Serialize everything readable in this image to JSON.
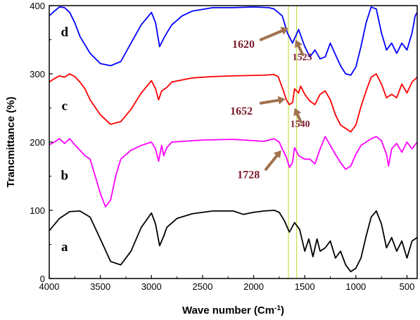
{
  "chart_data": {
    "type": "line",
    "xlabel": "Wave number (Cm",
    "xlabel_sup": "-1",
    "xlabel_close": ")",
    "ylabel": "Trancmittance (%)",
    "xlim": [
      4000,
      400
    ],
    "ylim": [
      0,
      400
    ],
    "x_ticks": [
      4000,
      3500,
      3000,
      2500,
      2000,
      1500,
      1000,
      500
    ],
    "y_ticks": [
      0,
      100,
      200,
      300,
      400
    ],
    "grid": false,
    "series": [
      {
        "label": "a",
        "label_x": 3850,
        "label_y": 40,
        "color": "#000000",
        "points": [
          [
            4000,
            70
          ],
          [
            3900,
            88
          ],
          [
            3800,
            98
          ],
          [
            3700,
            99
          ],
          [
            3600,
            90
          ],
          [
            3500,
            58
          ],
          [
            3400,
            25
          ],
          [
            3300,
            20
          ],
          [
            3200,
            40
          ],
          [
            3100,
            75
          ],
          [
            3000,
            96
          ],
          [
            2960,
            80
          ],
          [
            2920,
            48
          ],
          [
            2880,
            62
          ],
          [
            2850,
            75
          ],
          [
            2750,
            88
          ],
          [
            2600,
            95
          ],
          [
            2400,
            99
          ],
          [
            2200,
            99
          ],
          [
            2100,
            94
          ],
          [
            2000,
            97
          ],
          [
            1900,
            99
          ],
          [
            1800,
            100
          ],
          [
            1750,
            97
          ],
          [
            1700,
            85
          ],
          [
            1650,
            68
          ],
          [
            1600,
            82
          ],
          [
            1550,
            72
          ],
          [
            1500,
            40
          ],
          [
            1460,
            58
          ],
          [
            1420,
            32
          ],
          [
            1380,
            58
          ],
          [
            1350,
            40
          ],
          [
            1300,
            45
          ],
          [
            1250,
            55
          ],
          [
            1200,
            30
          ],
          [
            1150,
            40
          ],
          [
            1100,
            20
          ],
          [
            1050,
            10
          ],
          [
            1000,
            15
          ],
          [
            950,
            30
          ],
          [
            900,
            62
          ],
          [
            850,
            90
          ],
          [
            800,
            99
          ],
          [
            750,
            80
          ],
          [
            700,
            45
          ],
          [
            650,
            60
          ],
          [
            600,
            40
          ],
          [
            550,
            55
          ],
          [
            500,
            30
          ],
          [
            450,
            55
          ],
          [
            400,
            60
          ]
        ]
      },
      {
        "label": "b",
        "label_x": 3850,
        "label_y": 145,
        "color": "#ff00ff",
        "points": [
          [
            4000,
            196
          ],
          [
            3950,
            200
          ],
          [
            3900,
            205
          ],
          [
            3850,
            198
          ],
          [
            3800,
            205
          ],
          [
            3750,
            196
          ],
          [
            3700,
            188
          ],
          [
            3650,
            180
          ],
          [
            3600,
            175
          ],
          [
            3550,
            150
          ],
          [
            3500,
            125
          ],
          [
            3450,
            105
          ],
          [
            3400,
            115
          ],
          [
            3350,
            150
          ],
          [
            3300,
            175
          ],
          [
            3200,
            188
          ],
          [
            3100,
            195
          ],
          [
            3000,
            200
          ],
          [
            2960,
            190
          ],
          [
            2930,
            172
          ],
          [
            2900,
            195
          ],
          [
            2880,
            180
          ],
          [
            2850,
            192
          ],
          [
            2800,
            200
          ],
          [
            2500,
            203
          ],
          [
            2200,
            204
          ],
          [
            1900,
            201
          ],
          [
            1800,
            205
          ],
          [
            1750,
            200
          ],
          [
            1720,
            190
          ],
          [
            1680,
            178
          ],
          [
            1650,
            163
          ],
          [
            1620,
            170
          ],
          [
            1600,
            192
          ],
          [
            1560,
            180
          ],
          [
            1500,
            175
          ],
          [
            1450,
            175
          ],
          [
            1400,
            168
          ],
          [
            1350,
            190
          ],
          [
            1300,
            208
          ],
          [
            1250,
            195
          ],
          [
            1200,
            182
          ],
          [
            1150,
            170
          ],
          [
            1100,
            160
          ],
          [
            1050,
            165
          ],
          [
            1000,
            182
          ],
          [
            950,
            195
          ],
          [
            900,
            200
          ],
          [
            850,
            205
          ],
          [
            800,
            208
          ],
          [
            750,
            202
          ],
          [
            700,
            182
          ],
          [
            680,
            165
          ],
          [
            650,
            190
          ],
          [
            600,
            198
          ],
          [
            550,
            185
          ],
          [
            500,
            200
          ],
          [
            450,
            190
          ],
          [
            400,
            200
          ]
        ]
      },
      {
        "label": "c",
        "label_x": 3850,
        "label_y": 247,
        "color": "#ff0000",
        "points": [
          [
            4000,
            288
          ],
          [
            3950,
            293
          ],
          [
            3900,
            297
          ],
          [
            3850,
            295
          ],
          [
            3800,
            300
          ],
          [
            3750,
            296
          ],
          [
            3700,
            288
          ],
          [
            3650,
            278
          ],
          [
            3600,
            262
          ],
          [
            3500,
            240
          ],
          [
            3400,
            226
          ],
          [
            3300,
            230
          ],
          [
            3200,
            248
          ],
          [
            3100,
            272
          ],
          [
            3000,
            290
          ],
          [
            2960,
            278
          ],
          [
            2930,
            262
          ],
          [
            2900,
            275
          ],
          [
            2850,
            280
          ],
          [
            2800,
            288
          ],
          [
            2600,
            294
          ],
          [
            2400,
            296
          ],
          [
            2200,
            297
          ],
          [
            1900,
            298
          ],
          [
            1800,
            299
          ],
          [
            1760,
            296
          ],
          [
            1720,
            280
          ],
          [
            1680,
            262
          ],
          [
            1650,
            255
          ],
          [
            1620,
            258
          ],
          [
            1600,
            278
          ],
          [
            1560,
            272
          ],
          [
            1540,
            282
          ],
          [
            1500,
            270
          ],
          [
            1450,
            260
          ],
          [
            1400,
            255
          ],
          [
            1350,
            270
          ],
          [
            1300,
            275
          ],
          [
            1250,
            262
          ],
          [
            1200,
            240
          ],
          [
            1150,
            225
          ],
          [
            1100,
            220
          ],
          [
            1050,
            215
          ],
          [
            1000,
            225
          ],
          [
            950,
            252
          ],
          [
            900,
            275
          ],
          [
            850,
            295
          ],
          [
            800,
            300
          ],
          [
            750,
            285
          ],
          [
            700,
            265
          ],
          [
            650,
            270
          ],
          [
            600,
            265
          ],
          [
            550,
            285
          ],
          [
            500,
            272
          ],
          [
            450,
            288
          ],
          [
            400,
            295
          ]
        ]
      },
      {
        "label": "d",
        "label_x": 3850,
        "label_y": 355,
        "color": "#0000ff",
        "points": [
          [
            4000,
            385
          ],
          [
            3950,
            392
          ],
          [
            3900,
            398
          ],
          [
            3850,
            397
          ],
          [
            3800,
            390
          ],
          [
            3750,
            375
          ],
          [
            3700,
            355
          ],
          [
            3600,
            330
          ],
          [
            3500,
            315
          ],
          [
            3400,
            312
          ],
          [
            3300,
            318
          ],
          [
            3200,
            345
          ],
          [
            3100,
            372
          ],
          [
            3000,
            390
          ],
          [
            2960,
            375
          ],
          [
            2920,
            340
          ],
          [
            2880,
            352
          ],
          [
            2850,
            360
          ],
          [
            2800,
            372
          ],
          [
            2700,
            385
          ],
          [
            2600,
            392
          ],
          [
            2400,
            397
          ],
          [
            2200,
            397
          ],
          [
            2000,
            398
          ],
          [
            1850,
            397
          ],
          [
            1800,
            395
          ],
          [
            1720,
            385
          ],
          [
            1670,
            360
          ],
          [
            1620,
            345
          ],
          [
            1590,
            355
          ],
          [
            1560,
            365
          ],
          [
            1525,
            350
          ],
          [
            1500,
            340
          ],
          [
            1450,
            325
          ],
          [
            1400,
            335
          ],
          [
            1350,
            322
          ],
          [
            1300,
            325
          ],
          [
            1250,
            345
          ],
          [
            1200,
            328
          ],
          [
            1150,
            312
          ],
          [
            1100,
            300
          ],
          [
            1050,
            298
          ],
          [
            1000,
            310
          ],
          [
            950,
            340
          ],
          [
            900,
            375
          ],
          [
            850,
            398
          ],
          [
            800,
            395
          ],
          [
            750,
            360
          ],
          [
            700,
            335
          ],
          [
            650,
            345
          ],
          [
            600,
            330
          ],
          [
            550,
            345
          ],
          [
            500,
            335
          ],
          [
            450,
            360
          ],
          [
            420,
            385
          ],
          [
            400,
            390
          ]
        ]
      }
    ],
    "vertical_markers": [
      1660,
      1580
    ],
    "annotations": [
      {
        "text": "1620",
        "x": 2100,
        "y": 338,
        "size": 16,
        "arrow_from": [
          1930,
          350
        ],
        "arrow_to": [
          1660,
          367
        ]
      },
      {
        "text": "1525",
        "x": 1525,
        "y": 320,
        "size": 14,
        "arrow_from": [
          1520,
          328
        ],
        "arrow_to": [
          1590,
          350
        ]
      },
      {
        "text": "1652",
        "x": 2120,
        "y": 240,
        "size": 16,
        "arrow_from": [
          1930,
          257
        ],
        "arrow_to": [
          1690,
          263
        ]
      },
      {
        "text": "1540",
        "x": 1545,
        "y": 222,
        "size": 14,
        "arrow_from": [
          1540,
          230
        ],
        "arrow_to": [
          1600,
          250
        ]
      },
      {
        "text": "1728",
        "x": 2050,
        "y": 147,
        "size": 16,
        "arrow_from": [
          1880,
          160
        ],
        "arrow_to": [
          1730,
          188
        ]
      }
    ]
  }
}
